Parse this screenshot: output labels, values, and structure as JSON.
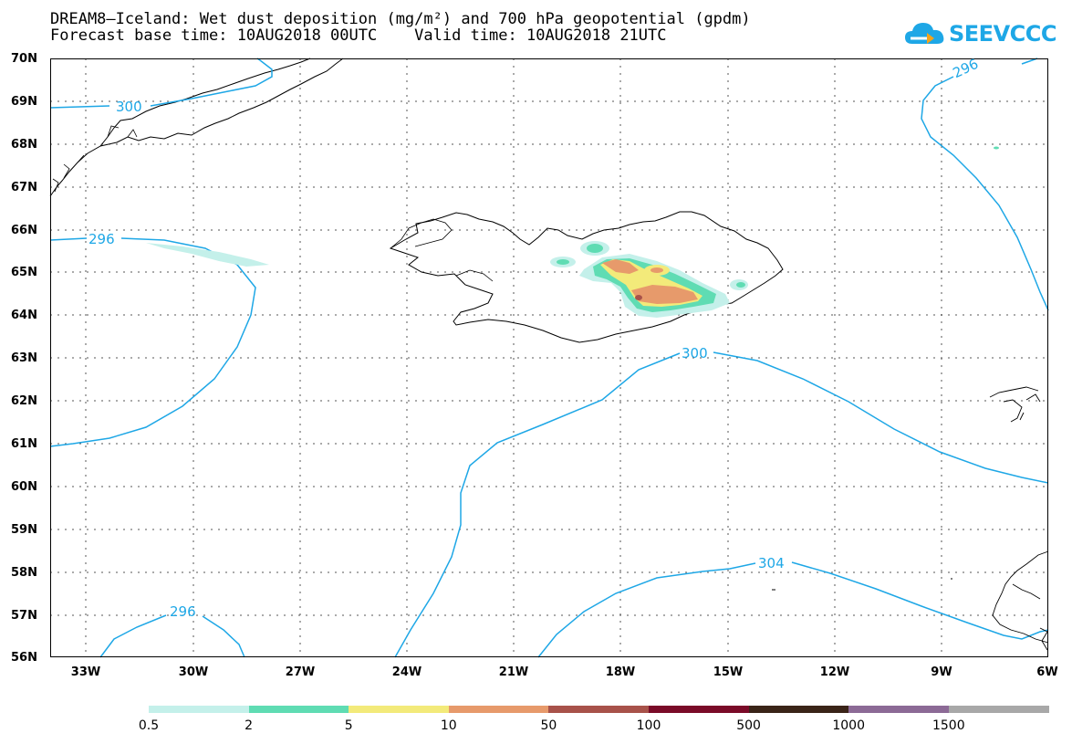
{
  "title_line1": "DREAM8–Iceland: Wet dust deposition (mg/m²) and 700 hPa geopotential (gpdm)",
  "title_line2": "Forecast base time: 10AUG2018 00UTC    Valid time: 10AUG2018 21UTC",
  "logo_text": "SEEVCCC",
  "lat_labels": [
    "70N",
    "69N",
    "68N",
    "67N",
    "66N",
    "65N",
    "64N",
    "63N",
    "62N",
    "61N",
    "60N",
    "59N",
    "58N",
    "57N",
    "56N"
  ],
  "lon_labels": [
    "33W",
    "30W",
    "27W",
    "24W",
    "21W",
    "18W",
    "15W",
    "12W",
    "9W",
    "6W"
  ],
  "contour_labels": {
    "c300_nw": "300",
    "c296_w": "296",
    "c296_ne": "296",
    "c300_c": "300",
    "c304": "304",
    "c296_sw": "296"
  },
  "colorbar": {
    "colors": [
      "#c4f0ea",
      "#5fdcb3",
      "#f3ea7a",
      "#e79a6b",
      "#a8524a",
      "#7a0b28",
      "#3a2418",
      "#8c6a96",
      "#a8a8a8"
    ],
    "labels": [
      "0.5",
      "2",
      "5",
      "10",
      "50",
      "100",
      "500",
      "1000",
      "1500"
    ]
  },
  "colors": {
    "contour": "#1ea7e6",
    "coast": "#000000"
  }
}
